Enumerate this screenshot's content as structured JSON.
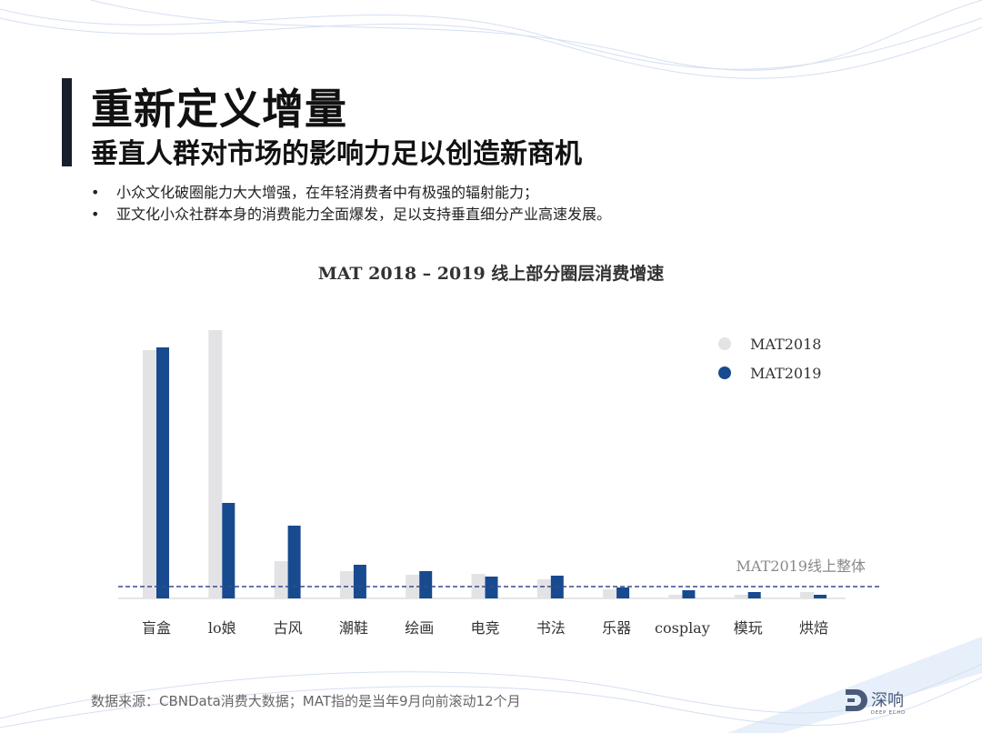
{
  "header": {
    "title": "重新定义增量",
    "subtitle": "垂直人群对市场的影响力足以创造新商机"
  },
  "bullets": [
    "小众文化破圈能力大大增强，在年轻消费者中有极强的辐射能力；",
    "亚文化小众社群本身的消费能力全面爆发，足以支持垂直细分产业高速发展。"
  ],
  "chart_data": {
    "type": "bar",
    "title": "MAT 2018 – 2019 线上部分圈层消费增速",
    "categories": [
      "盲盒",
      "lo娘",
      "古风",
      "潮鞋",
      "绘画",
      "电竞",
      "书法",
      "乐器",
      "cosplay",
      "模玩",
      "烘焙"
    ],
    "series": [
      {
        "name": "MAT2018",
        "color": "#e3e3e6",
        "values": [
          273,
          295,
          41,
          30,
          26,
          27,
          21,
          10,
          4,
          4,
          7
        ]
      },
      {
        "name": "MAT2019",
        "color": "#184a8f",
        "values": [
          276,
          105,
          80,
          37,
          30,
          24,
          25,
          12,
          9,
          7,
          4
        ]
      }
    ],
    "reference_line": {
      "label": "MAT2019线上整体",
      "value": 13,
      "color": "#3a4a8a"
    },
    "ylim": [
      0,
      300
    ],
    "y_axis_shown": false,
    "grid": false,
    "legend_position": "top-right",
    "note": "values are relative estimates; no axis scale printed"
  },
  "footer": {
    "source": "数据来源：CBNData消费大数据；MAT指的是当年9月向前滚动12个月",
    "logo_text": "深响",
    "logo_subtext": "DEEP ECHO"
  }
}
